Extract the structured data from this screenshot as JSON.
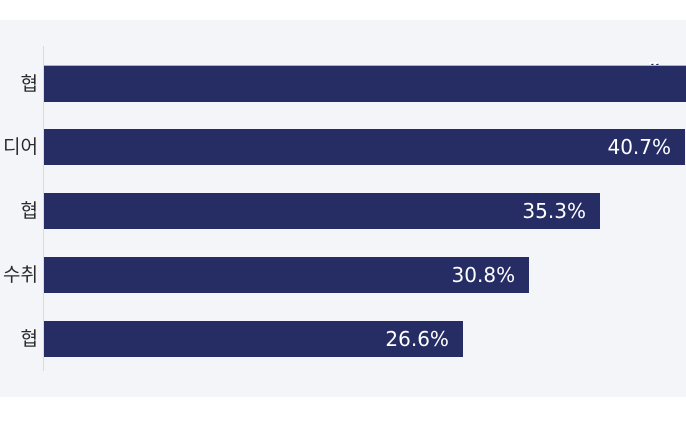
{
  "chart_data": {
    "type": "bar",
    "orientation": "horizontal",
    "categories": [
      "협",
      "디어",
      "협",
      "수취",
      "협"
    ],
    "values": [
      null,
      40.7,
      35.3,
      30.8,
      26.6
    ],
    "value_labels": [
      "",
      "40.7%",
      "35.3%",
      "30.8%",
      "26.6%"
    ],
    "axis_break_on_first_bar": true,
    "bar_color": "#262c64",
    "title": "",
    "xlabel": "",
    "ylabel": ""
  }
}
